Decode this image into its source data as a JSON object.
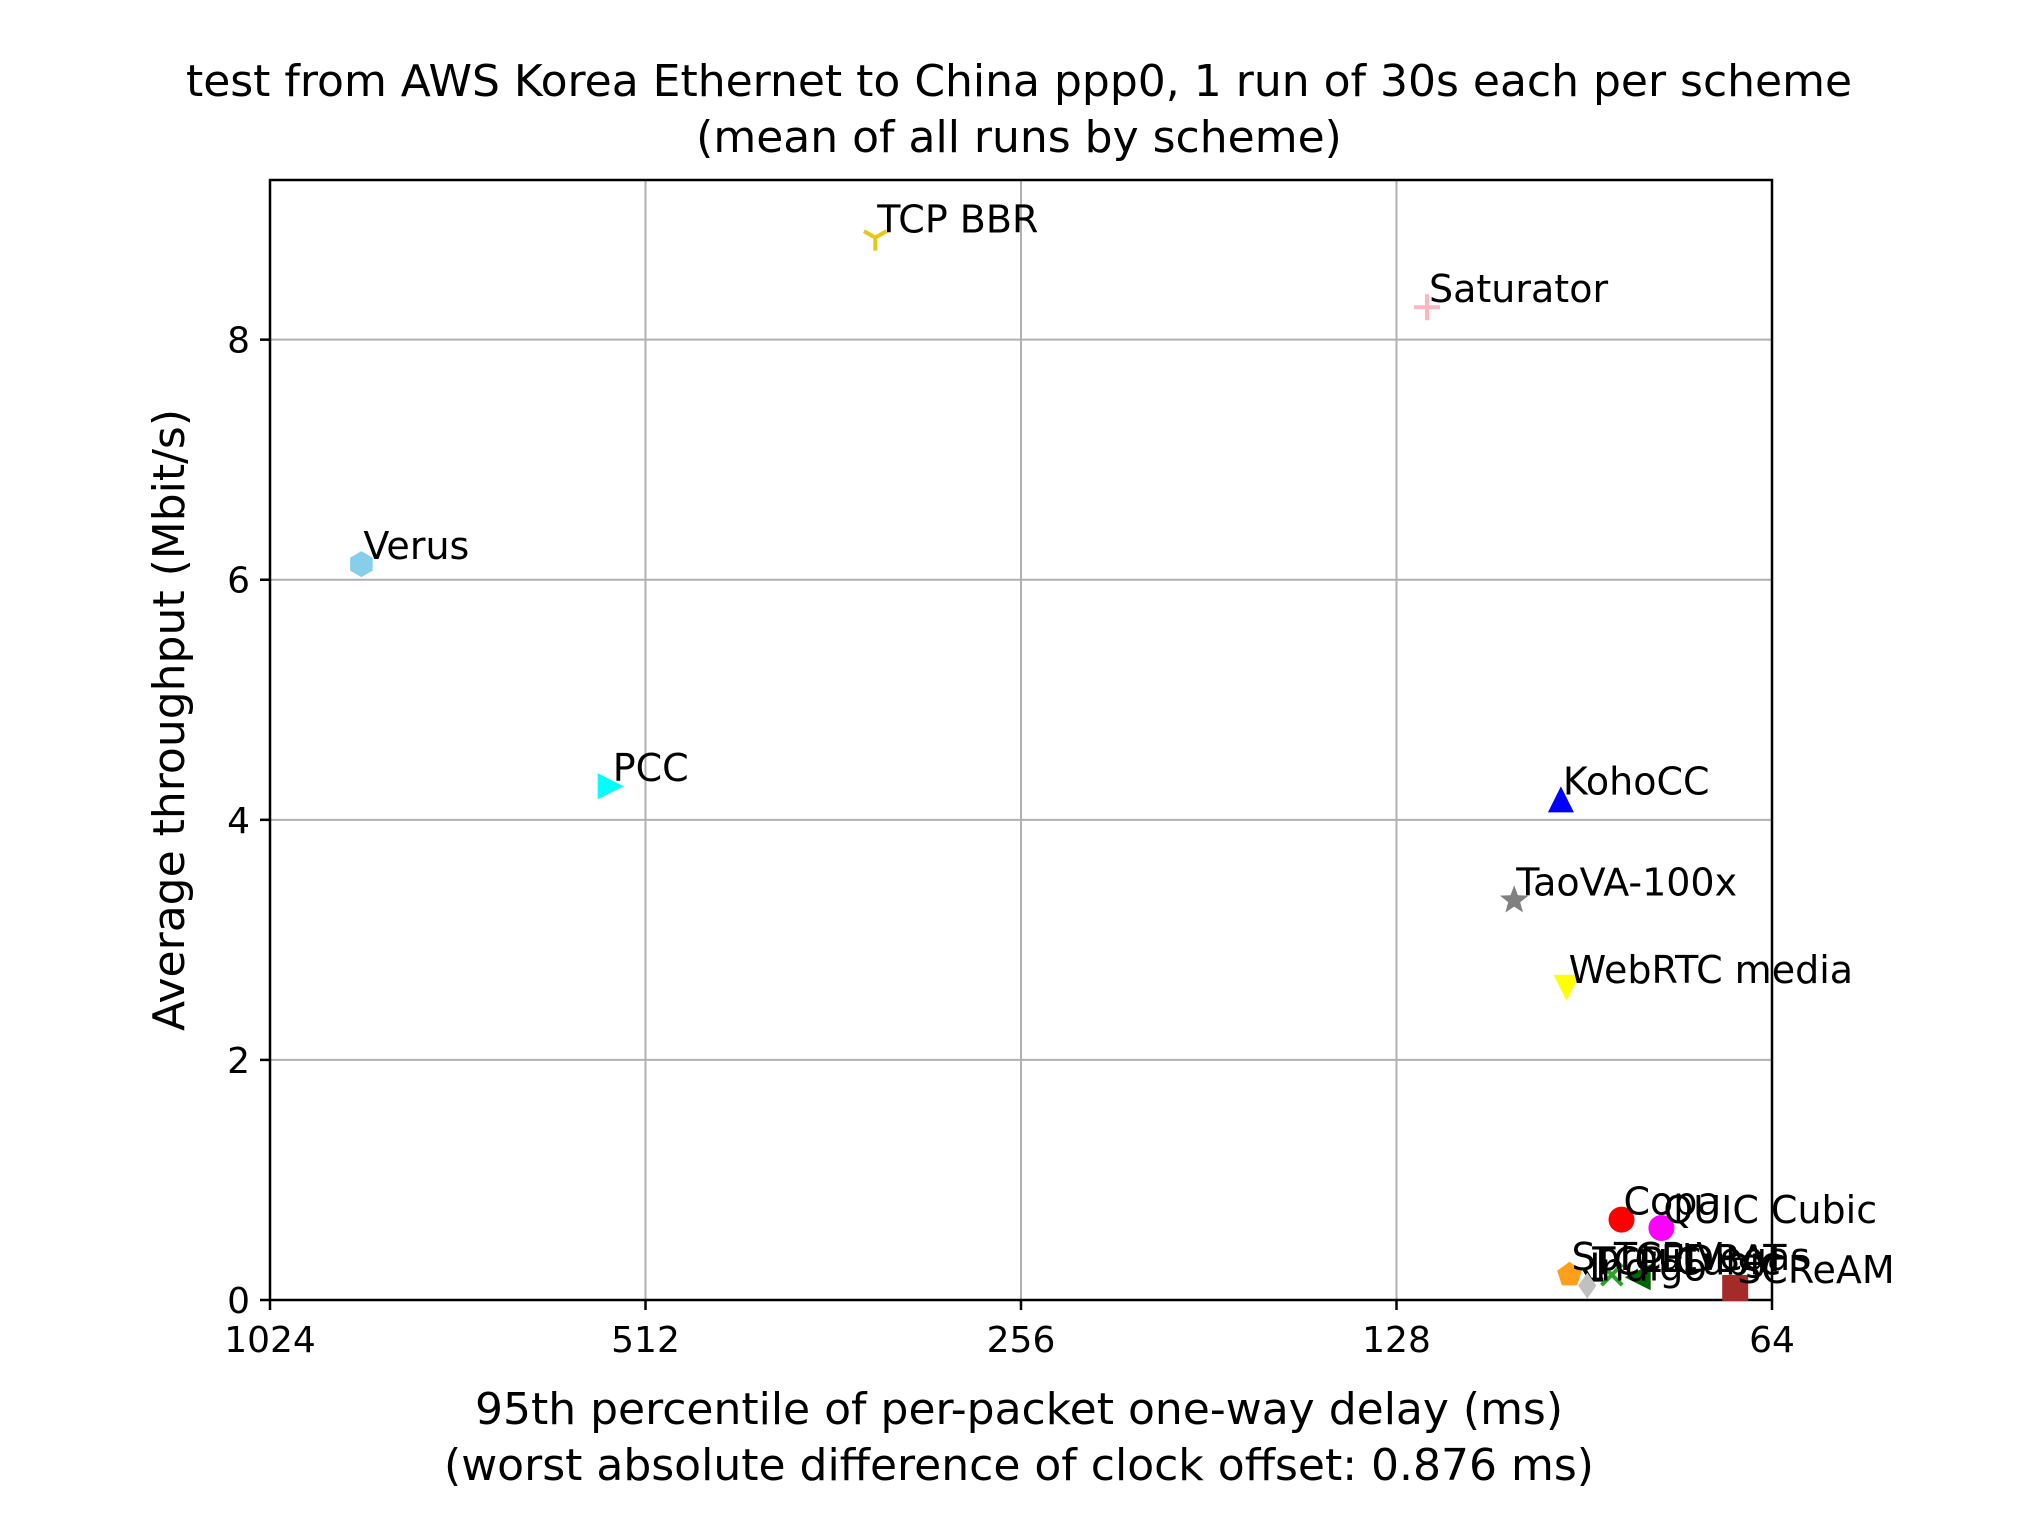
{
  "chart_data": {
    "type": "scatter",
    "title": "test from AWS Korea Ethernet to China ppp0, 1 run of 30s each per scheme",
    "subtitle": "(mean of all runs by scheme)",
    "xlabel": "95th percentile of per-packet one-way delay (ms)",
    "xlabel_sub": "(worst absolute difference of clock offset: 0.876 ms)",
    "ylabel": "Average throughput (Mbit/s)",
    "x_scale": "log2",
    "x_reversed": true,
    "xlim": [
      1024,
      64
    ],
    "ylim": [
      0,
      9.33
    ],
    "x_ticks": [
      1024,
      512,
      256,
      128,
      64
    ],
    "x_tick_labels": [
      "1024",
      "512",
      "256",
      "128",
      "64"
    ],
    "y_ticks": [
      0,
      2,
      4,
      6,
      8
    ],
    "y_tick_labels": [
      "0",
      "2",
      "4",
      "6",
      "8"
    ],
    "grid": true,
    "points": [
      {
        "name": "TCP BBR",
        "x": 335,
        "y": 8.85,
        "color": "#e6c619",
        "marker": "tri-down"
      },
      {
        "name": "Saturator",
        "x": 121,
        "y": 8.27,
        "color": "#ffb6c1",
        "marker": "plus"
      },
      {
        "name": "Verus",
        "x": 865,
        "y": 6.13,
        "color": "#87ceeb",
        "marker": "hexagon"
      },
      {
        "name": "PCC",
        "x": 546,
        "y": 4.28,
        "color": "#00ffff",
        "marker": "triangle-right"
      },
      {
        "name": "KohoCC",
        "x": 94.5,
        "y": 4.17,
        "color": "#0000ff",
        "marker": "triangle-up"
      },
      {
        "name": "TaoVA-100x",
        "x": 103,
        "y": 3.33,
        "color": "#808080",
        "marker": "star"
      },
      {
        "name": "WebRTC media",
        "x": 93.5,
        "y": 2.6,
        "color": "#ffff00",
        "marker": "triangle-down"
      },
      {
        "name": "Copa",
        "x": 84.5,
        "y": 0.67,
        "color": "#ff0000",
        "marker": "circle"
      },
      {
        "name": "QUIC Cubic",
        "x": 78.5,
        "y": 0.6,
        "color": "#ff00ff",
        "marker": "circle"
      },
      {
        "name": "SCReAM",
        "x": 68.5,
        "y": 0.1,
        "color": "#a52a2a",
        "marker": "square"
      },
      {
        "name": "Sprout",
        "x": 93,
        "y": 0.21,
        "color": "#ff9f1a",
        "marker": "pentagon"
      },
      {
        "name": "TCP Cubic",
        "x": 89.5,
        "y": 0.17,
        "color": "#000000",
        "marker": "tri-right"
      },
      {
        "name": "TCP Vegas",
        "x": 86,
        "y": 0.21,
        "color": "#2ca02c",
        "marker": "x"
      },
      {
        "name": "LEDBAT",
        "x": 82,
        "y": 0.19,
        "color": "#006400",
        "marker": "triangle-left"
      },
      {
        "name": "Indigo",
        "x": 90,
        "y": 0.12,
        "color": "#c0c0c0",
        "marker": "diamond"
      }
    ]
  }
}
